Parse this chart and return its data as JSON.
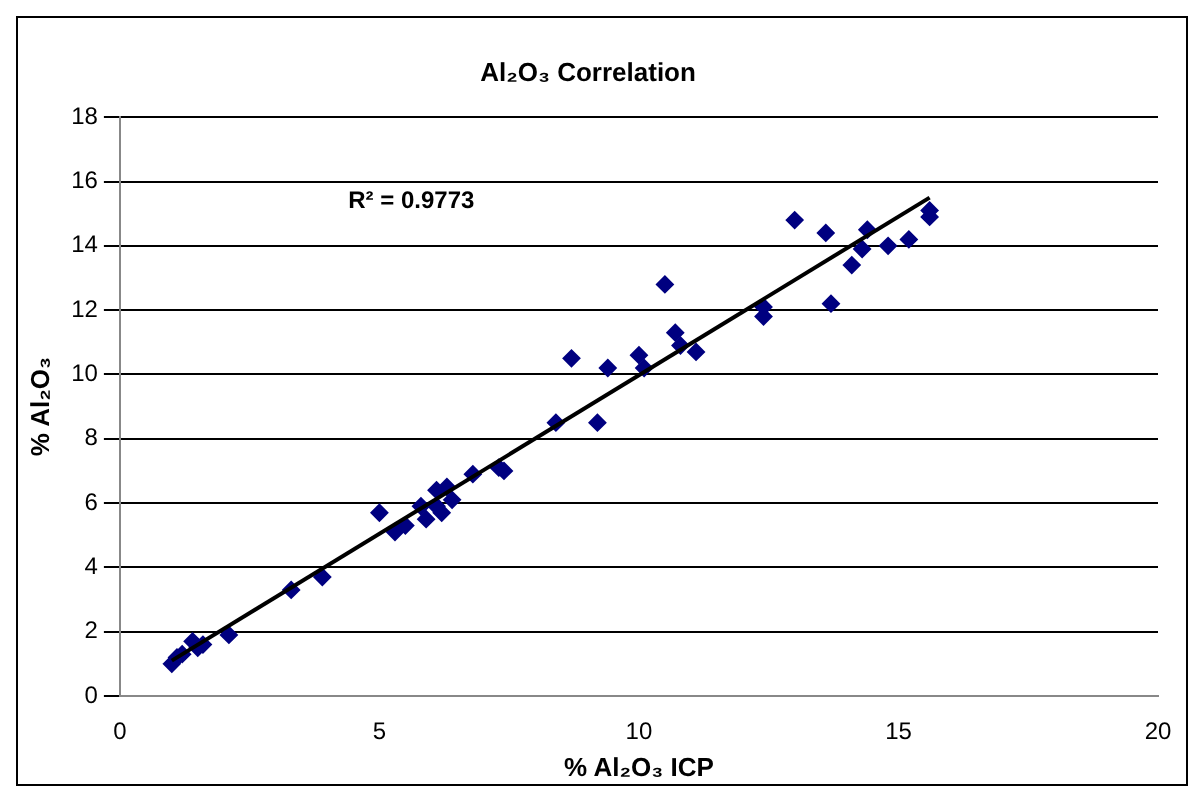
{
  "chart_data": {
    "type": "scatter",
    "title": "Al₂O₃ Correlation",
    "xlabel": "% Al₂O₃ ICP",
    "ylabel": "% Al₂O₃",
    "annotations": [
      "R² = 0.9773"
    ],
    "xlim": [
      0,
      20
    ],
    "xticks": [
      0,
      5,
      10,
      15,
      20
    ],
    "ylim": [
      0,
      18
    ],
    "yticks": [
      0,
      2,
      4,
      6,
      8,
      10,
      12,
      14,
      16,
      18
    ],
    "grid": "y",
    "legend": false,
    "marker": "diamond",
    "series": [
      {
        "type": "scatter",
        "color": "#000080",
        "x": [
          1.0,
          1.1,
          1.2,
          1.4,
          1.5,
          1.6,
          2.1,
          3.3,
          3.9,
          5.0,
          5.3,
          5.5,
          5.8,
          5.9,
          6.1,
          6.1,
          6.2,
          6.3,
          6.4,
          6.8,
          7.3,
          7.4,
          8.4,
          8.7,
          9.2,
          9.4,
          10.0,
          10.1,
          10.5,
          10.7,
          10.8,
          11.1,
          12.4,
          12.4,
          13.0,
          13.6,
          13.7,
          14.1,
          14.3,
          14.4,
          14.8,
          15.2,
          15.6,
          15.6
        ],
        "values": [
          1.0,
          1.2,
          1.3,
          1.7,
          1.5,
          1.6,
          1.9,
          3.3,
          3.7,
          5.7,
          5.1,
          5.3,
          5.9,
          5.5,
          6.4,
          5.9,
          5.7,
          6.5,
          6.1,
          6.9,
          7.1,
          7.0,
          8.5,
          10.5,
          8.5,
          10.2,
          10.6,
          10.2,
          12.8,
          11.3,
          10.9,
          10.7,
          12.1,
          11.8,
          14.8,
          14.4,
          12.2,
          13.4,
          13.9,
          14.5,
          14.0,
          14.2,
          15.1,
          14.9
        ]
      },
      {
        "type": "line",
        "color": "#000000",
        "marker": "none",
        "x": [
          1.0,
          15.6
        ],
        "values": [
          1.1,
          15.5
        ]
      }
    ]
  }
}
